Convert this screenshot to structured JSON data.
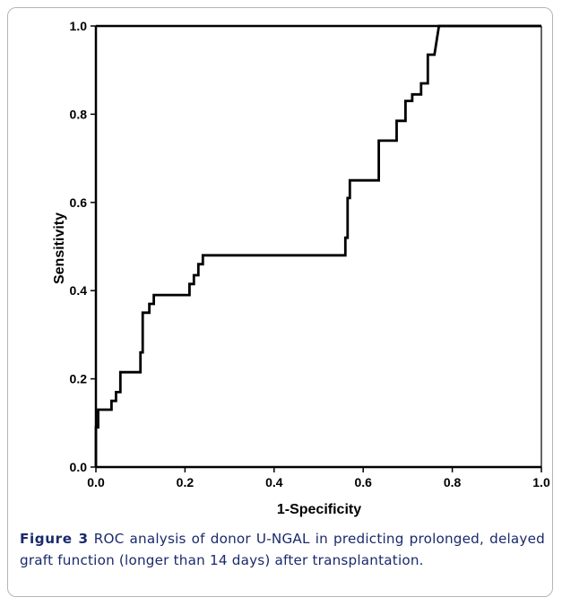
{
  "chart_data": {
    "type": "line",
    "title": "",
    "xlabel": "1-Specificity",
    "ylabel": "Sensitivity",
    "xlim": [
      0.0,
      1.0
    ],
    "ylim": [
      0.0,
      1.0
    ],
    "xticks": [
      "0.0",
      "0.2",
      "0.4",
      "0.6",
      "0.8",
      "1.0"
    ],
    "yticks": [
      "0.0",
      "0.2",
      "0.4",
      "0.6",
      "0.8",
      "1.0"
    ],
    "grid": false,
    "legend": "none",
    "series": [
      {
        "x": [
          0.0,
          0.0,
          0.005,
          0.005,
          0.035,
          0.035,
          0.045,
          0.045,
          0.055,
          0.055,
          0.1,
          0.1,
          0.105,
          0.105,
          0.12,
          0.12,
          0.13,
          0.13,
          0.21,
          0.21,
          0.22,
          0.22,
          0.23,
          0.23,
          0.24,
          0.24,
          0.56,
          0.56,
          0.565,
          0.565,
          0.57,
          0.57,
          0.635,
          0.635,
          0.675,
          0.675,
          0.695,
          0.695,
          0.71,
          0.71,
          0.73,
          0.73,
          0.745,
          0.745,
          0.76,
          0.77,
          1.0
        ],
        "y": [
          0.0,
          0.09,
          0.09,
          0.13,
          0.13,
          0.15,
          0.15,
          0.17,
          0.17,
          0.215,
          0.215,
          0.26,
          0.26,
          0.35,
          0.35,
          0.37,
          0.37,
          0.39,
          0.39,
          0.415,
          0.415,
          0.435,
          0.435,
          0.46,
          0.46,
          0.48,
          0.48,
          0.52,
          0.52,
          0.61,
          0.61,
          0.65,
          0.65,
          0.74,
          0.74,
          0.785,
          0.785,
          0.83,
          0.83,
          0.845,
          0.845,
          0.87,
          0.87,
          0.935,
          0.935,
          1.0,
          1.0
        ]
      }
    ],
    "line_color": "#000000"
  },
  "caption": {
    "label": "Figure 3",
    "text": " ROC analysis of donor U-NGAL in predicting prolonged, delayed graft function (longer than 14 days) after transplantation."
  }
}
